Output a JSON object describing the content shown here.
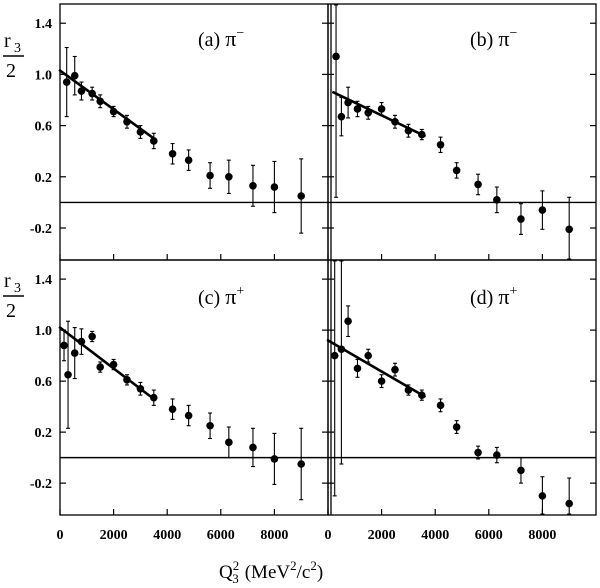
{
  "figure": {
    "y_axis_label": {
      "numerator": "r",
      "subscript": "3",
      "denominator": "2"
    },
    "x_axis_label": {
      "q": "Q",
      "sub": "3",
      "sup": "2",
      "units": "(MeV",
      "units_sup": "2",
      "units_tail": "/c",
      "units_tail_sup": "2",
      "close": ")"
    }
  },
  "chart_data": [
    {
      "type": "scatter",
      "label": "(a)",
      "particle": "π",
      "charge": "−",
      "xlim": [
        0,
        10000
      ],
      "ylim": [
        -0.45,
        1.55
      ],
      "yticks": [
        "1.4",
        "1.0",
        "0.6",
        "0.2",
        "-0.2"
      ],
      "ytick_values": [
        1.4,
        1.0,
        0.6,
        0.2,
        -0.2
      ],
      "xticks": [],
      "reference_line_y": 0,
      "fit": {
        "x": [
          0,
          3500
        ],
        "y": [
          1.03,
          0.5
        ]
      },
      "points": [
        {
          "x": 250,
          "y": 0.94,
          "err": 0.27
        },
        {
          "x": 550,
          "y": 0.99,
          "err": 0.15
        },
        {
          "x": 800,
          "y": 0.87,
          "err": 0.07
        },
        {
          "x": 1200,
          "y": 0.85,
          "err": 0.05
        },
        {
          "x": 1500,
          "y": 0.79,
          "err": 0.05
        },
        {
          "x": 2000,
          "y": 0.71,
          "err": 0.04
        },
        {
          "x": 2500,
          "y": 0.63,
          "err": 0.05
        },
        {
          "x": 3000,
          "y": 0.55,
          "err": 0.05
        },
        {
          "x": 3500,
          "y": 0.48,
          "err": 0.06
        },
        {
          "x": 4200,
          "y": 0.38,
          "err": 0.08
        },
        {
          "x": 4800,
          "y": 0.33,
          "err": 0.08
        },
        {
          "x": 5600,
          "y": 0.21,
          "err": 0.1
        },
        {
          "x": 6300,
          "y": 0.2,
          "err": 0.13
        },
        {
          "x": 7200,
          "y": 0.13,
          "err": 0.16
        },
        {
          "x": 8000,
          "y": 0.12,
          "err": 0.2
        },
        {
          "x": 9000,
          "y": 0.05,
          "err": 0.29
        }
      ]
    },
    {
      "type": "scatter",
      "label": "(b)",
      "particle": "π",
      "charge": "−",
      "xlim": [
        0,
        10000
      ],
      "ylim": [
        -0.45,
        1.55
      ],
      "yticks": [],
      "xticks": [],
      "reference_line_y": 0,
      "reference_line_x": 0,
      "fit": {
        "x": [
          200,
          3600
        ],
        "y": [
          0.86,
          0.52
        ]
      },
      "points": [
        {
          "x": 300,
          "y": 1.14,
          "err": 1.1
        },
        {
          "x": 500,
          "y": 0.67,
          "err": 0.15
        },
        {
          "x": 750,
          "y": 0.78,
          "err": 0.12
        },
        {
          "x": 1100,
          "y": 0.73,
          "err": 0.06
        },
        {
          "x": 1500,
          "y": 0.7,
          "err": 0.05
        },
        {
          "x": 2000,
          "y": 0.73,
          "err": 0.05
        },
        {
          "x": 2500,
          "y": 0.63,
          "err": 0.05
        },
        {
          "x": 3000,
          "y": 0.56,
          "err": 0.05
        },
        {
          "x": 3500,
          "y": 0.53,
          "err": 0.04
        },
        {
          "x": 4200,
          "y": 0.45,
          "err": 0.06
        },
        {
          "x": 4800,
          "y": 0.25,
          "err": 0.06
        },
        {
          "x": 5600,
          "y": 0.14,
          "err": 0.08
        },
        {
          "x": 6300,
          "y": 0.02,
          "err": 0.1
        },
        {
          "x": 7200,
          "y": -0.13,
          "err": 0.12
        },
        {
          "x": 8000,
          "y": -0.06,
          "err": 0.15
        },
        {
          "x": 9000,
          "y": -0.21,
          "err": 0.25
        }
      ]
    },
    {
      "type": "scatter",
      "label": "(c)",
      "particle": "π",
      "charge": "+",
      "xlim": [
        0,
        10000
      ],
      "ylim": [
        -0.45,
        1.55
      ],
      "yticks": [
        "1.4",
        "1.0",
        "0.6",
        "0.2",
        "-0.2"
      ],
      "ytick_values": [
        1.4,
        1.0,
        0.6,
        0.2,
        -0.2
      ],
      "xticks": [
        "0",
        "2000",
        "4000",
        "6000",
        "8000"
      ],
      "xtick_values": [
        0,
        2000,
        4000,
        6000,
        8000
      ],
      "reference_line_y": 0,
      "fit": {
        "x": [
          0,
          3500
        ],
        "y": [
          1.02,
          0.46
        ]
      },
      "points": [
        {
          "x": 150,
          "y": 0.88,
          "err": 0.12
        },
        {
          "x": 300,
          "y": 0.65,
          "err": 0.42
        },
        {
          "x": 550,
          "y": 0.82,
          "err": 0.2
        },
        {
          "x": 800,
          "y": 0.91,
          "err": 0.1
        },
        {
          "x": 1200,
          "y": 0.95,
          "err": 0.04
        },
        {
          "x": 1500,
          "y": 0.71,
          "err": 0.04
        },
        {
          "x": 2000,
          "y": 0.73,
          "err": 0.04
        },
        {
          "x": 2500,
          "y": 0.61,
          "err": 0.04
        },
        {
          "x": 3000,
          "y": 0.54,
          "err": 0.05
        },
        {
          "x": 3500,
          "y": 0.47,
          "err": 0.06
        },
        {
          "x": 4200,
          "y": 0.38,
          "err": 0.08
        },
        {
          "x": 4800,
          "y": 0.33,
          "err": 0.08
        },
        {
          "x": 5600,
          "y": 0.25,
          "err": 0.1
        },
        {
          "x": 6300,
          "y": 0.12,
          "err": 0.12
        },
        {
          "x": 7200,
          "y": 0.08,
          "err": 0.15
        },
        {
          "x": 8000,
          "y": -0.01,
          "err": 0.2
        },
        {
          "x": 9000,
          "y": -0.05,
          "err": 0.28
        }
      ]
    },
    {
      "type": "scatter",
      "label": "(d)",
      "particle": "π",
      "charge": "+",
      "xlim": [
        0,
        10000
      ],
      "ylim": [
        -0.45,
        1.55
      ],
      "yticks": [],
      "xticks": [
        "0",
        "2000",
        "4000",
        "6000",
        "8000"
      ],
      "xtick_values": [
        0,
        2000,
        4000,
        6000,
        8000
      ],
      "reference_line_y": 0,
      "reference_line_x": 0,
      "fit": {
        "x": [
          0,
          3600
        ],
        "y": [
          0.92,
          0.48
        ]
      },
      "points": [
        {
          "x": 250,
          "y": 0.8,
          "err": 1.1
        },
        {
          "x": 500,
          "y": 0.85,
          "err": 0.9
        },
        {
          "x": 750,
          "y": 1.07,
          "err": 0.12
        },
        {
          "x": 1100,
          "y": 0.7,
          "err": 0.07
        },
        {
          "x": 1500,
          "y": 0.8,
          "err": 0.05
        },
        {
          "x": 2000,
          "y": 0.6,
          "err": 0.05
        },
        {
          "x": 2500,
          "y": 0.69,
          "err": 0.05
        },
        {
          "x": 3000,
          "y": 0.53,
          "err": 0.04
        },
        {
          "x": 3500,
          "y": 0.49,
          "err": 0.04
        },
        {
          "x": 4200,
          "y": 0.41,
          "err": 0.05
        },
        {
          "x": 4800,
          "y": 0.24,
          "err": 0.05
        },
        {
          "x": 5600,
          "y": 0.04,
          "err": 0.05
        },
        {
          "x": 6300,
          "y": 0.02,
          "err": 0.06
        },
        {
          "x": 7200,
          "y": -0.1,
          "err": 0.1
        },
        {
          "x": 8000,
          "y": -0.3,
          "err": 0.15
        },
        {
          "x": 9000,
          "y": -0.36,
          "err": 0.2
        }
      ]
    }
  ]
}
